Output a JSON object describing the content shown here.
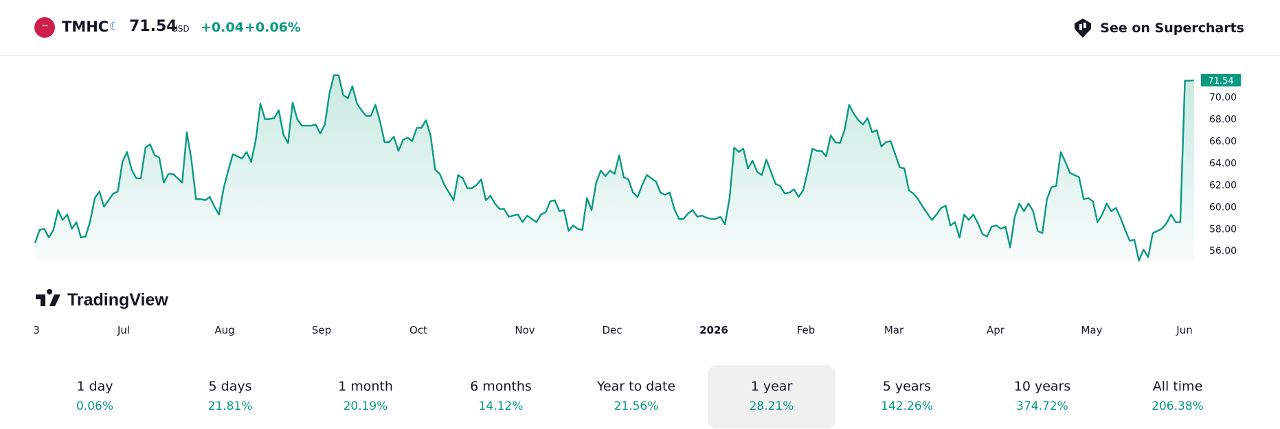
{
  "header": {
    "symbol": "TMHC",
    "logo_text": "ᐩᐩᐩ",
    "price": "71.54",
    "currency": "USD",
    "change": "+0.04",
    "change_pct": "+0.06%",
    "moon_icon": "crescent-moon-icon",
    "supercharts_label": "See on Supercharts"
  },
  "watermark": "TradingView",
  "last_price_label": "71.54",
  "colors": {
    "up": "#089981",
    "line": "#089981",
    "fill_top": "#c8e9e1",
    "logo": "#cc1f4a"
  },
  "chart_data": {
    "type": "area",
    "series": [
      {
        "values": [
          56.7,
          57.9,
          58.0,
          57.2,
          57.9,
          59.7,
          58.8,
          59.3,
          58.0,
          58.6,
          57.2,
          57.3,
          58.7,
          60.8,
          61.4,
          60.0,
          60.6,
          61.2,
          61.4,
          64.1,
          65.0,
          63.4,
          62.6,
          62.6,
          65.4,
          65.7,
          64.7,
          64.5,
          62.2,
          63.0,
          63.0,
          62.6,
          62.2,
          66.8,
          64.3,
          60.7,
          60.7,
          60.6,
          60.9,
          60.0,
          59.3,
          61.7,
          63.3,
          64.8,
          64.6,
          64.4,
          65.0,
          64.1,
          66.1,
          69.4,
          68.0,
          68.0,
          68.1,
          68.8,
          66.6,
          65.8,
          69.5,
          68.0,
          67.4,
          67.4,
          67.4,
          67.5,
          66.7,
          67.5,
          70.3,
          72.0,
          72.0,
          70.2,
          69.9,
          71.0,
          69.4,
          68.8,
          68.3,
          68.3,
          69.3,
          67.8,
          65.9,
          65.9,
          66.4,
          65.1,
          66.1,
          66.3,
          66.0,
          67.2,
          67.2,
          67.9,
          66.5,
          63.4,
          63.0,
          62.0,
          61.3,
          60.6,
          62.9,
          62.6,
          61.7,
          61.7,
          62.0,
          62.5,
          60.6,
          61.0,
          60.3,
          59.8,
          59.8,
          59.1,
          59.2,
          59.3,
          58.6,
          59.2,
          58.9,
          58.6,
          59.3,
          59.5,
          60.5,
          60.6,
          59.6,
          59.7,
          57.8,
          58.3,
          58.0,
          57.9,
          60.8,
          59.7,
          62.2,
          63.3,
          62.8,
          63.3,
          63.0,
          64.7,
          62.7,
          62.5,
          61.3,
          60.9,
          62.0,
          62.9,
          62.6,
          62.3,
          61.3,
          61.1,
          61.3,
          59.8,
          58.9,
          58.9,
          59.4,
          59.7,
          59.1,
          59.2,
          59.0,
          58.9,
          58.9,
          59.1,
          58.4,
          60.8,
          65.4,
          65.0,
          65.3,
          63.5,
          64.2,
          63.2,
          62.9,
          64.3,
          63.2,
          62.1,
          61.9,
          61.2,
          61.3,
          61.6,
          60.9,
          61.5,
          63.3,
          65.3,
          65.1,
          65.1,
          64.6,
          66.5,
          65.9,
          65.8,
          67.0,
          69.3,
          68.5,
          67.9,
          67.5,
          68.1,
          66.8,
          67.0,
          65.5,
          65.9,
          66.0,
          64.8,
          63.6,
          63.5,
          61.5,
          61.2,
          60.7,
          60.0,
          59.4,
          58.8,
          59.3,
          59.9,
          60.1,
          58.3,
          58.6,
          57.2,
          59.3,
          58.8,
          59.3,
          58.5,
          57.5,
          57.3,
          58.2,
          58.3,
          58.0,
          58.2,
          56.3,
          59.1,
          60.3,
          59.6,
          60.3,
          59.6,
          57.8,
          57.6,
          60.7,
          61.8,
          61.9,
          65.0,
          64.1,
          63.1,
          62.9,
          62.7,
          60.7,
          60.8,
          60.5,
          58.6,
          59.3,
          60.3,
          59.6,
          59.9,
          59.0,
          57.9,
          56.9,
          57.0,
          55.1,
          56.1,
          55.4,
          57.6,
          57.8,
          58.0,
          58.5,
          59.3,
          58.6,
          58.6,
          71.5,
          71.5,
          71.54
        ]
      }
    ],
    "x_ticks": [
      "3",
      "Jul",
      "Aug",
      "Sep",
      "Oct",
      "Nov",
      "Dec",
      "2026",
      "Feb",
      "Mar",
      "Apr",
      "May",
      "Jun"
    ],
    "y_ticks": [
      "56.00",
      "58.00",
      "60.00",
      "62.00",
      "64.00",
      "66.00",
      "68.00",
      "70.00"
    ],
    "ylim": [
      54.95,
      72.6
    ],
    "grid": false
  },
  "periods": [
    {
      "label": "1 day",
      "value": "0.06%"
    },
    {
      "label": "5 days",
      "value": "21.81%"
    },
    {
      "label": "1 month",
      "value": "20.19%"
    },
    {
      "label": "6 months",
      "value": "14.12%"
    },
    {
      "label": "Year to date",
      "value": "21.56%"
    },
    {
      "label": "1 year",
      "value": "28.21%",
      "active": true
    },
    {
      "label": "5 years",
      "value": "142.26%"
    },
    {
      "label": "10 years",
      "value": "374.72%"
    },
    {
      "label": "All time",
      "value": "206.38%"
    }
  ]
}
